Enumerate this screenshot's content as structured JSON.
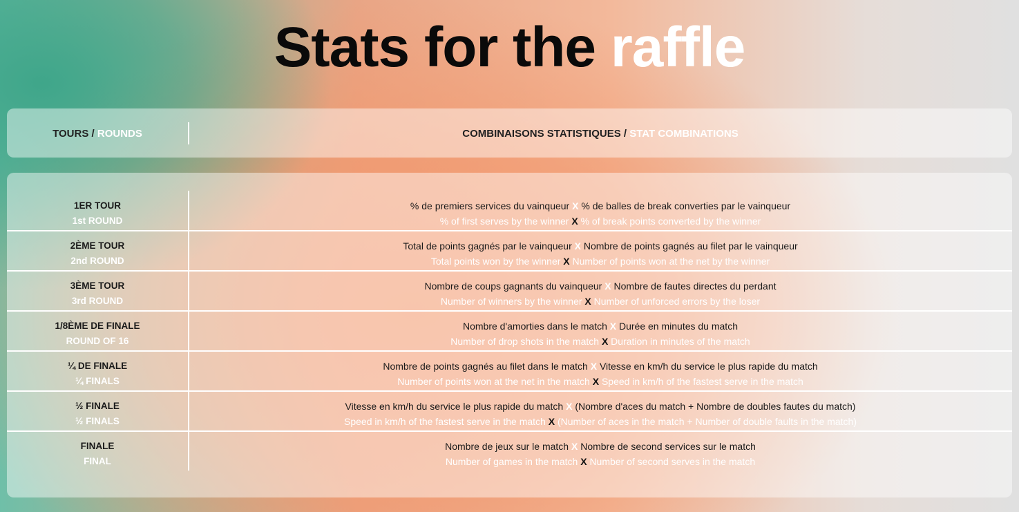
{
  "title": {
    "black": "Stats for the",
    "white": "raffle"
  },
  "header": {
    "rounds_fr": "TOURS /",
    "rounds_en": "ROUNDS",
    "stats_fr": "COMBINAISONS STATISTIQUES /",
    "stats_en": "STAT COMBINATIONS"
  },
  "separator": "X",
  "rows": [
    {
      "round_fr": "1ER TOUR",
      "round_en": "1st ROUND",
      "fr_a": "% de premiers services du vainqueur",
      "fr_b": "% de balles de break converties par le vainqueur",
      "en_a": "% of first serves by the winner",
      "en_b": "% of break points converted by the winner"
    },
    {
      "round_fr": "2ÈME TOUR",
      "round_en": "2nd ROUND",
      "fr_a": "Total de points gagnés par le vainqueur",
      "fr_b": "Nombre de points gagnés au filet par le vainqueur",
      "en_a": "Total points won by the winner",
      "en_b": "Number of points won at the net by the winner"
    },
    {
      "round_fr": "3ÈME TOUR",
      "round_en": "3rd ROUND",
      "fr_a": "Nombre de coups gagnants du vainqueur",
      "fr_b": "Nombre de fautes directes du perdant",
      "en_a": "Number of winners by the winner",
      "en_b": "Number of unforced errors by the loser"
    },
    {
      "round_fr": "1/8ÈME DE FINALE",
      "round_en": "ROUND OF 16",
      "fr_a": "Nombre d'amorties dans le match",
      "fr_b": "Durée en minutes du match",
      "en_a": "Number of drop shots in the match",
      "en_b": "Duration in minutes of the match"
    },
    {
      "round_fr": "¼ DE FINALE",
      "round_en": "¼ FINALS",
      "fr_a": "Nombre de points gagnés au filet dans le match",
      "fr_b": "Vitesse en km/h du service le plus rapide du match",
      "en_a": "Number of points won at the net in the match",
      "en_b": "Speed in km/h of the fastest serve in the match"
    },
    {
      "round_fr": "½ FINALE",
      "round_en": "½ FINALS",
      "fr_a": "Vitesse en km/h du service le plus rapide du match",
      "fr_b": "(Nombre d'aces du match + Nombre de doubles fautes du match)",
      "en_a": "Speed in km/h of the fastest serve in the match",
      "en_b": "(Number of aces in the match + Number of double faults in the match)"
    },
    {
      "round_fr": "FINALE",
      "round_en": "FINAL",
      "fr_a": "Nombre de jeux sur le match",
      "fr_b": "Nombre de second services sur le match",
      "en_a": "Number of games in the match",
      "en_b": "Number of second serves in the match"
    }
  ]
}
